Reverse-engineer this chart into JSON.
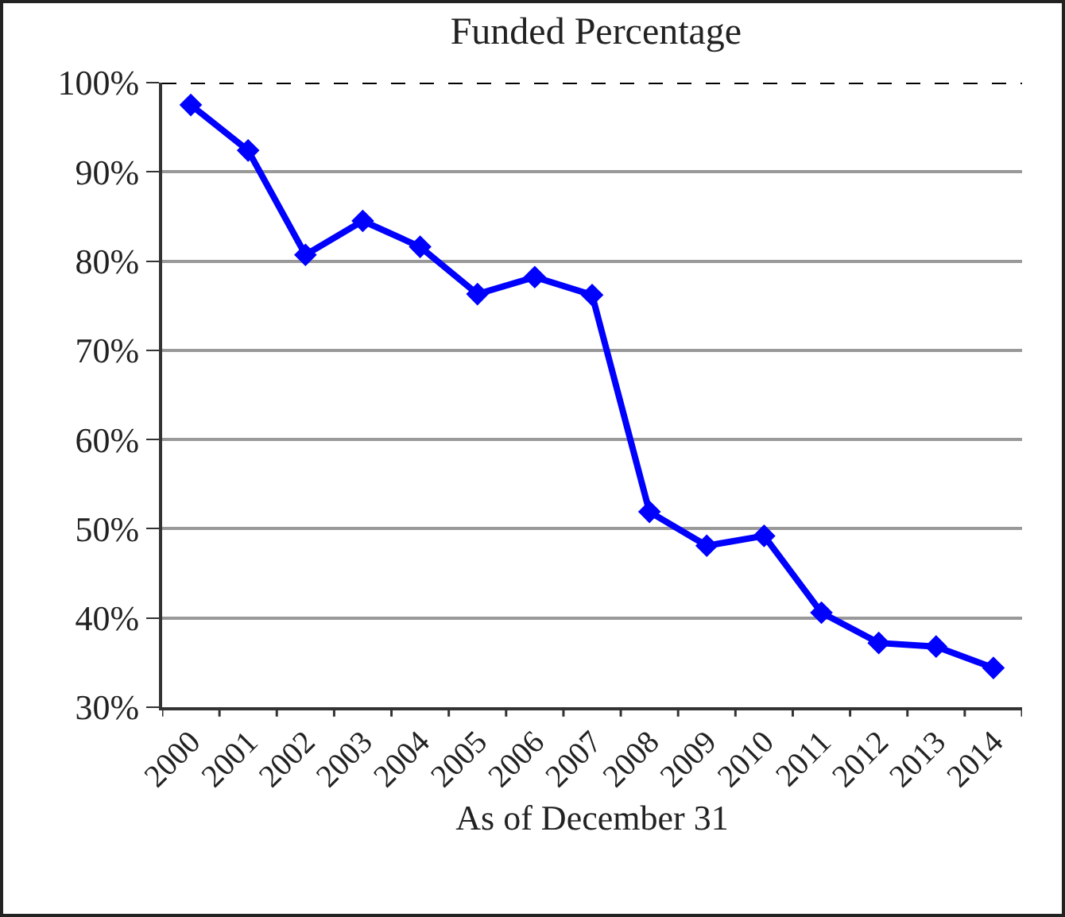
{
  "chart_data": {
    "type": "line",
    "title": "Funded Percentage",
    "xlabel": "As of December 31",
    "categories": [
      "2000",
      "2001",
      "2002",
      "2003",
      "2004",
      "2005",
      "2006",
      "2007",
      "2008",
      "2009",
      "2010",
      "2011",
      "2012",
      "2013",
      "2014"
    ],
    "series": [
      {
        "color": "#0000ff",
        "values": [
          97.5,
          92.4,
          80.7,
          84.5,
          81.6,
          76.3,
          78.2,
          76.2,
          51.9,
          48.1,
          49.2,
          40.6,
          37.2,
          36.8,
          34.4
        ]
      }
    ],
    "ylim": [
      30,
      100
    ],
    "yticks": [
      {
        "value": 30,
        "label": "30%"
      },
      {
        "value": 40,
        "label": "40%"
      },
      {
        "value": 50,
        "label": "50%"
      },
      {
        "value": 60,
        "label": "60%"
      },
      {
        "value": 70,
        "label": "70%"
      },
      {
        "value": 80,
        "label": "80%"
      },
      {
        "value": 90,
        "label": "90%"
      },
      {
        "value": 100,
        "label": "100%"
      }
    ],
    "ref_lines": [
      {
        "axis": "y",
        "value": 100,
        "color": "#000000",
        "line_style": "dashed"
      }
    ],
    "grid": "y",
    "marker": "diamond",
    "line_style": "solid"
  }
}
